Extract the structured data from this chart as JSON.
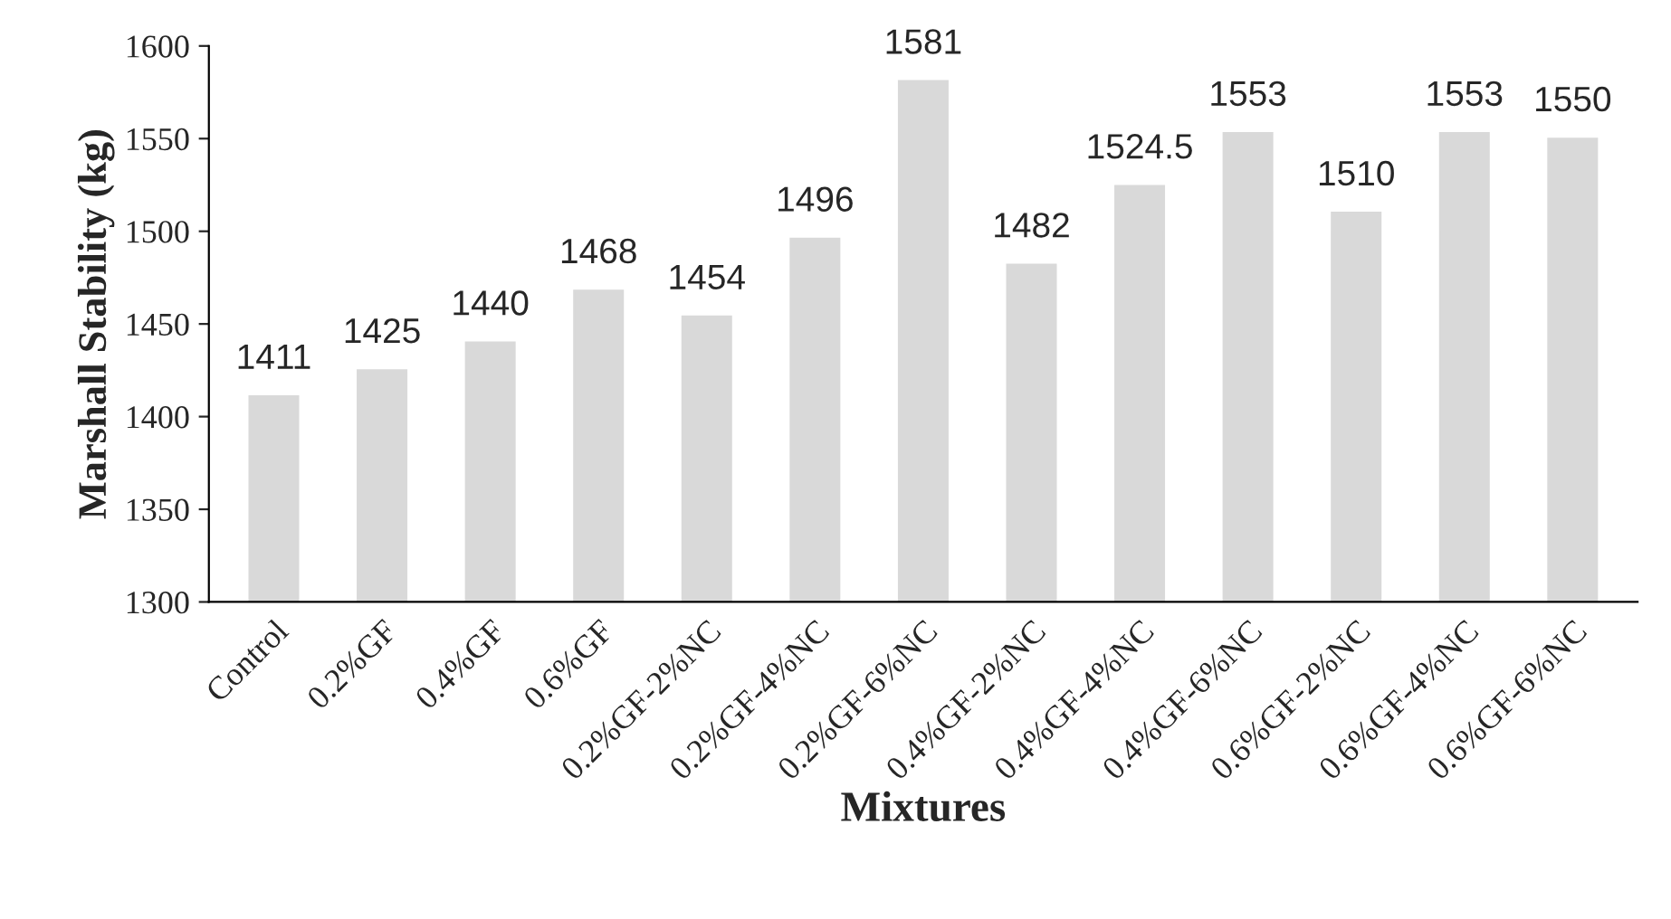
{
  "chart_data": {
    "type": "bar",
    "xlabel": "Mixtures",
    "ylabel": "Marshall Stability (kg)",
    "categories": [
      "Control",
      "0.2%GF",
      "0.4%GF",
      "0.6%GF",
      "0.2%GF-2%NC",
      "0.2%GF-4%NC",
      "0.2%GF-6%NC",
      "0.4%GF-2%NC",
      "0.4%GF-4%NC",
      "0.4%GF-6%NC",
      "0.6%GF-2%NC",
      "0.6%GF-4%NC",
      "0.6%GF-6%NC"
    ],
    "values": [
      1411,
      1425,
      1440,
      1468,
      1454,
      1496,
      1581,
      1482,
      1524.5,
      1553,
      1510,
      1553,
      1550
    ],
    "color": "#d9d9d9",
    "ylim": [
      1300,
      1600
    ],
    "yticks": [
      1300,
      1350,
      1400,
      1450,
      1500,
      1550,
      1600
    ],
    "data_labels": true,
    "grid": false,
    "legend": false
  }
}
